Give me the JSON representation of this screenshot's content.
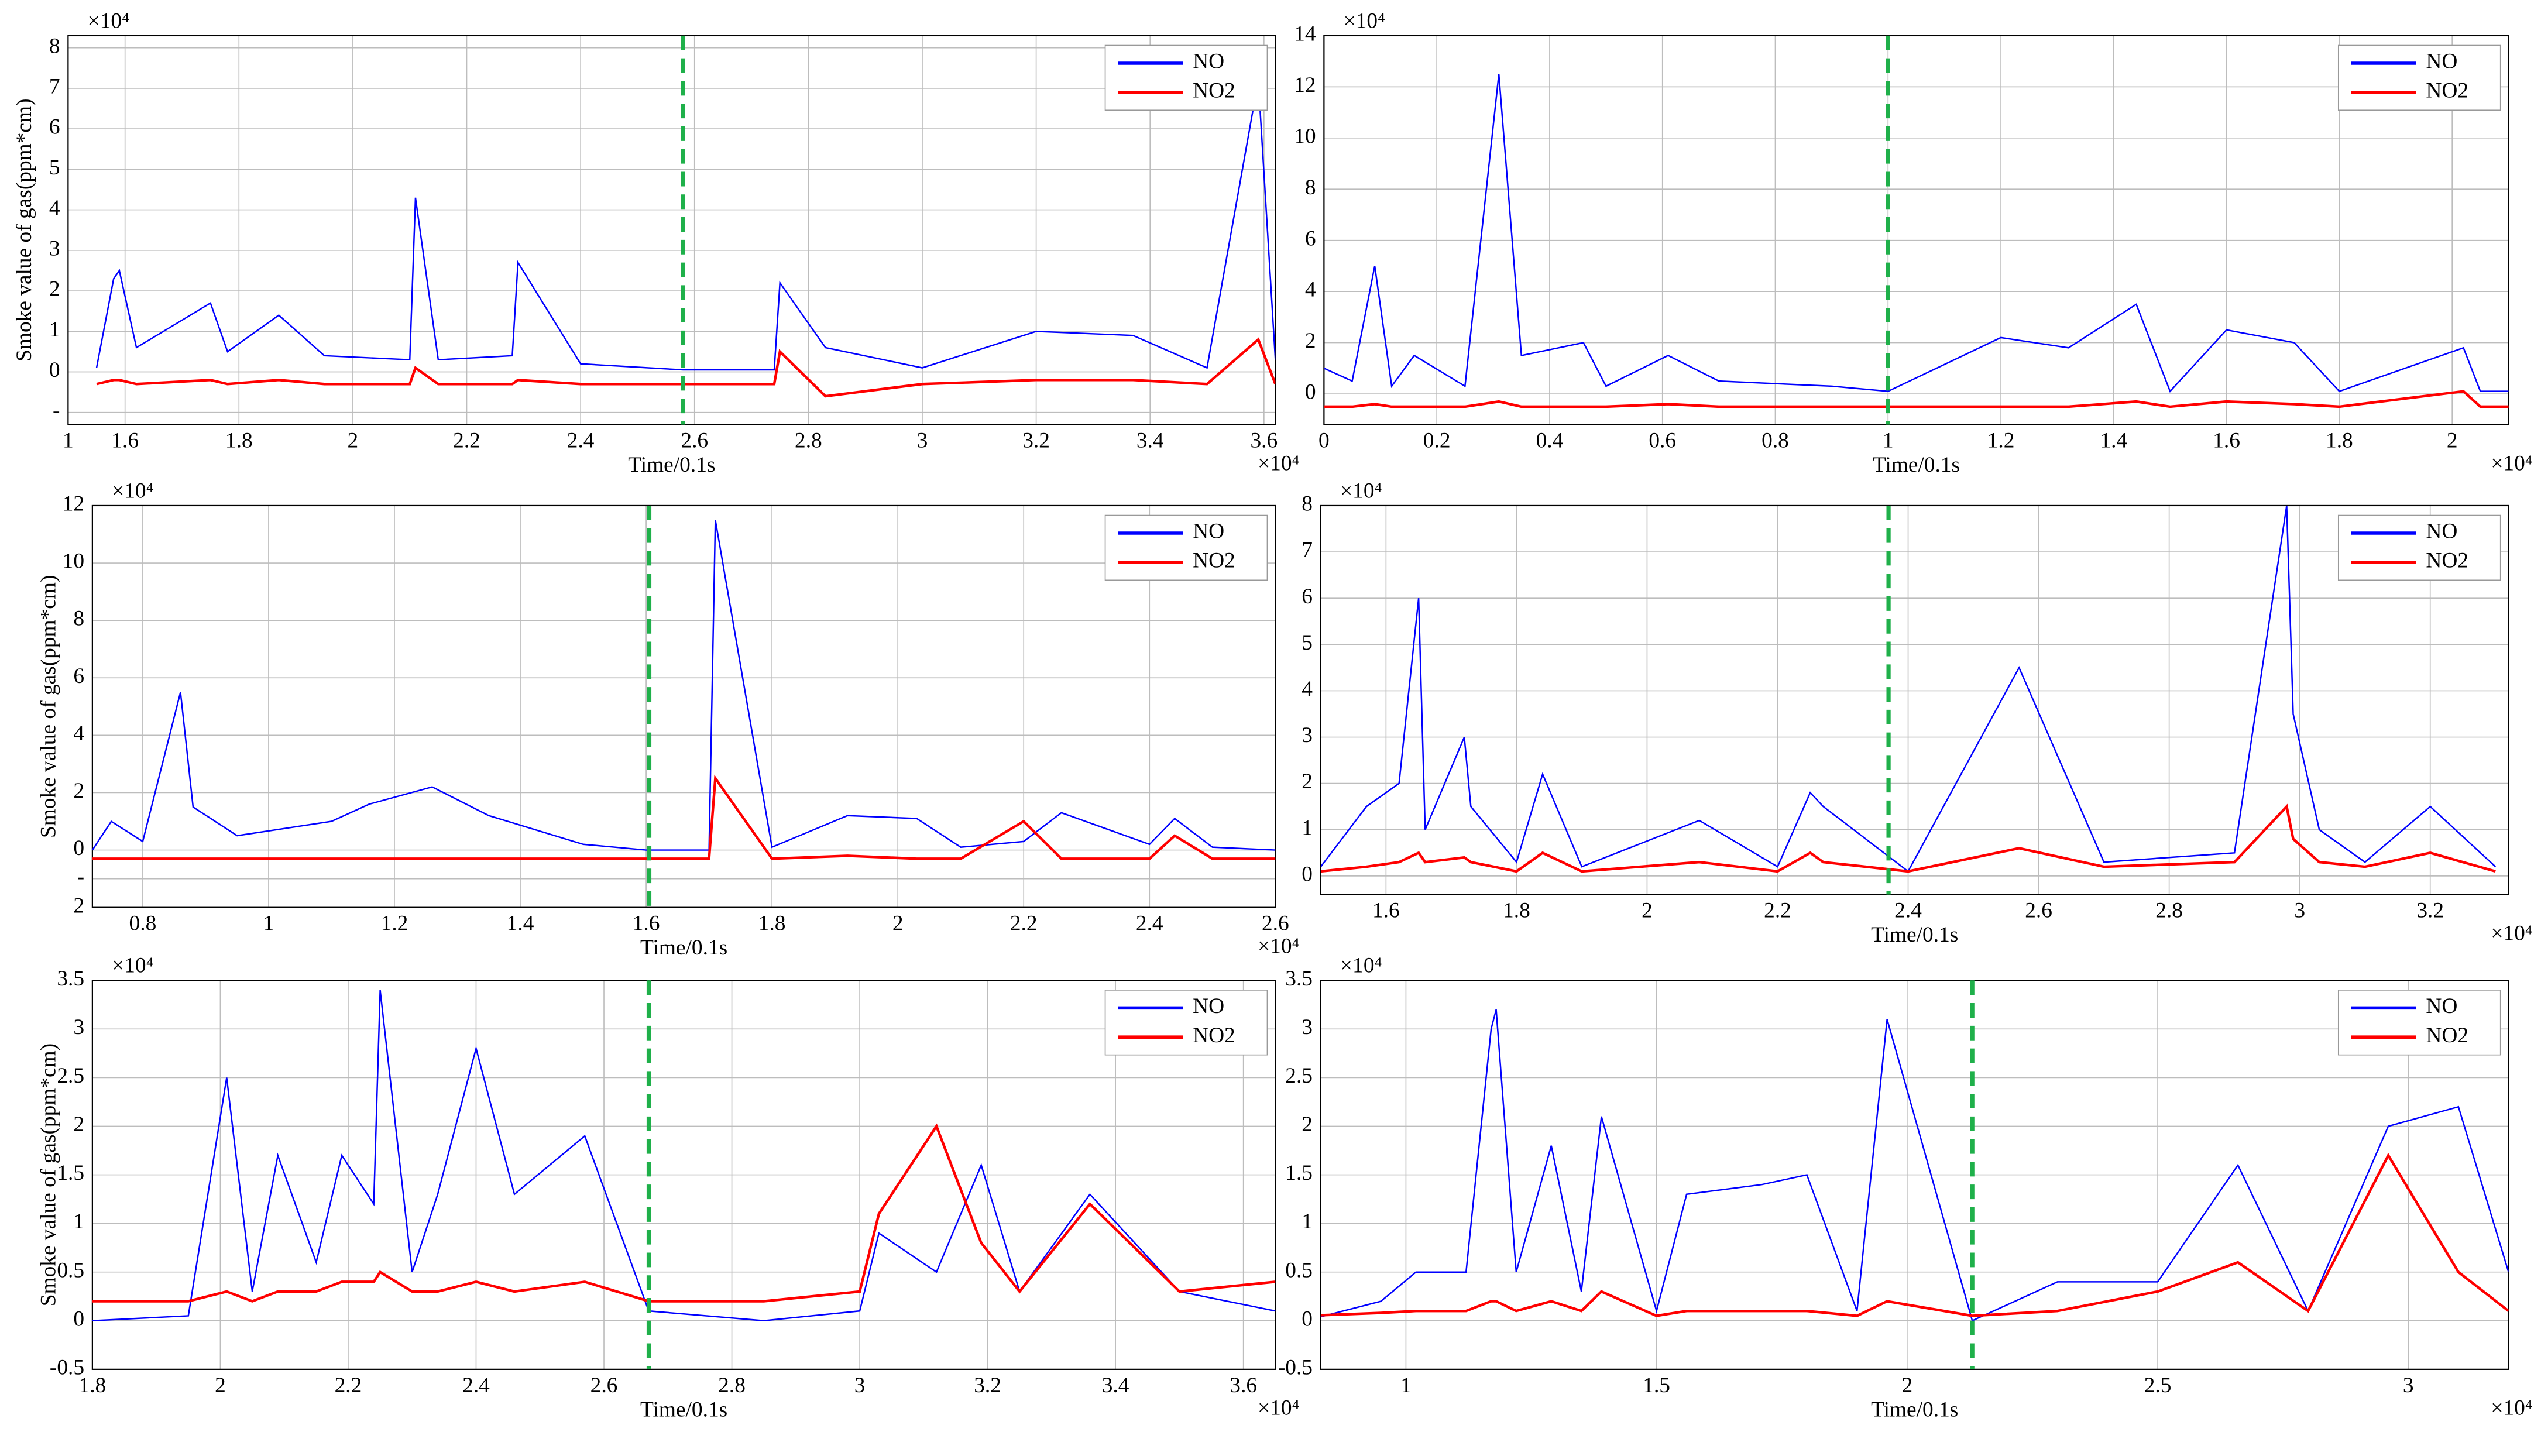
{
  "chart_data": [
    {
      "type": "line",
      "legend": "upper right",
      "grid": true,
      "ylabel": "Smoke value of gas(ppm*cm)",
      "xlabel": "Time/0.1s",
      "x_multiplier": "×10⁴",
      "y_multiplier": "×10⁴",
      "xlim": [
        1.5,
        3.62
      ],
      "ylim": [
        -1.3,
        8.3
      ],
      "xticks": [
        {
          "value": 1.5,
          "label": "1"
        },
        1.6,
        1.8,
        2,
        2.2,
        2.4,
        2.6,
        2.8,
        3,
        3.2,
        3.4,
        3.6
      ],
      "yticks": [
        {
          "value": -1,
          "label": "-"
        },
        0,
        1,
        2,
        3,
        4,
        5,
        6,
        7,
        8
      ],
      "vline": {
        "x": 2.58,
        "color": "#1fb04a"
      },
      "x": [
        1.55,
        1.58,
        1.59,
        1.62,
        1.75,
        1.78,
        1.87,
        1.95,
        2.1,
        2.11,
        2.15,
        2.28,
        2.29,
        2.4,
        2.58,
        2.74,
        2.75,
        2.83,
        3.0,
        3.2,
        3.37,
        3.5,
        3.59,
        3.62
      ],
      "series": [
        {
          "name": "NO",
          "color": "#0000ff",
          "values": [
            0.1,
            2.3,
            2.5,
            0.6,
            1.7,
            0.5,
            1.4,
            0.4,
            0.3,
            4.3,
            0.3,
            0.4,
            2.7,
            0.2,
            0.05,
            0.05,
            2.2,
            0.6,
            0.1,
            1.0,
            0.9,
            0.1,
            7.2,
            0.3
          ]
        },
        {
          "name": "NO2",
          "color": "#ff0000",
          "values": [
            -0.3,
            -0.2,
            -0.2,
            -0.3,
            -0.2,
            -0.3,
            -0.2,
            -0.3,
            -0.3,
            0.1,
            -0.3,
            -0.3,
            -0.2,
            -0.3,
            -0.3,
            -0.3,
            0.5,
            -0.6,
            -0.3,
            -0.2,
            -0.2,
            -0.3,
            0.8,
            -0.3
          ]
        }
      ]
    },
    {
      "type": "line",
      "legend": "upper right",
      "grid": true,
      "xlabel": "Time/0.1s",
      "x_multiplier": "×10⁴",
      "y_multiplier": "×10⁴",
      "xlim": [
        0,
        2.1
      ],
      "ylim": [
        -1.2,
        14
      ],
      "xticks": [
        0,
        0.2,
        0.4,
        0.6,
        0.8,
        1,
        1.2,
        1.4,
        1.6,
        1.8,
        2
      ],
      "yticks": [
        0,
        2,
        4,
        6,
        8,
        10,
        12,
        14
      ],
      "vline": {
        "x": 1.0,
        "color": "#1fb04a"
      },
      "x": [
        0,
        0.05,
        0.09,
        0.12,
        0.16,
        0.25,
        0.31,
        0.35,
        0.46,
        0.5,
        0.61,
        0.7,
        0.9,
        1.0,
        1.2,
        1.32,
        1.44,
        1.5,
        1.6,
        1.72,
        1.8,
        2.02,
        2.05,
        2.1
      ],
      "series": [
        {
          "name": "NO",
          "color": "#0000ff",
          "values": [
            1,
            0.5,
            5,
            0.3,
            1.5,
            0.3,
            12.5,
            1.5,
            2,
            0.3,
            1.5,
            0.5,
            0.3,
            0.1,
            2.2,
            1.8,
            3.5,
            0.1,
            2.5,
            2,
            0.1,
            1.8,
            0.1,
            0.1
          ]
        },
        {
          "name": "NO2",
          "color": "#ff0000",
          "values": [
            -0.5,
            -0.5,
            -0.4,
            -0.5,
            -0.5,
            -0.5,
            -0.3,
            -0.5,
            -0.5,
            -0.5,
            -0.4,
            -0.5,
            -0.5,
            -0.5,
            -0.5,
            -0.5,
            -0.3,
            -0.5,
            -0.3,
            -0.4,
            -0.5,
            0.1,
            -0.5,
            -0.5
          ]
        }
      ]
    },
    {
      "type": "line",
      "legend": "upper right",
      "grid": true,
      "ylabel": "Smoke value of gas(ppm*cm)",
      "xlabel": "Time/0.1s",
      "x_multiplier": "×10⁴",
      "y_multiplier": "×10⁴",
      "xlim": [
        0.72,
        2.6
      ],
      "ylim": [
        -2,
        12
      ],
      "xticks": [
        0.8,
        1,
        1.2,
        1.4,
        1.6,
        1.8,
        2,
        2.2,
        2.4,
        2.6
      ],
      "yticks": [
        {
          "value": -2,
          "label": "2"
        },
        {
          "value": -1,
          "label": "-"
        },
        0,
        2,
        4,
        6,
        8,
        10,
        12
      ],
      "vline": {
        "x": 1.605,
        "color": "#1fb04a"
      },
      "x": [
        0.72,
        0.75,
        0.8,
        0.86,
        0.88,
        0.95,
        1.1,
        1.16,
        1.26,
        1.35,
        1.5,
        1.6,
        1.7,
        1.71,
        1.8,
        1.92,
        2.03,
        2.1,
        2.2,
        2.26,
        2.4,
        2.44,
        2.5,
        2.6
      ],
      "series": [
        {
          "name": "NO",
          "color": "#0000ff",
          "values": [
            0,
            1,
            0.3,
            5.5,
            1.5,
            0.5,
            1,
            1.6,
            2.2,
            1.2,
            0.2,
            0,
            0,
            11.5,
            0.1,
            1.2,
            1.1,
            0.1,
            0.3,
            1.3,
            0.2,
            1.1,
            0.1,
            0
          ]
        },
        {
          "name": "NO2",
          "color": "#ff0000",
          "values": [
            -0.3,
            -0.3,
            -0.3,
            -0.3,
            -0.3,
            -0.3,
            -0.3,
            -0.3,
            -0.3,
            -0.3,
            -0.3,
            -0.3,
            -0.3,
            2.5,
            -0.3,
            -0.2,
            -0.3,
            -0.3,
            1,
            -0.3,
            -0.3,
            0.5,
            -0.3,
            -0.3
          ]
        }
      ]
    },
    {
      "type": "line",
      "legend": "upper right",
      "grid": true,
      "xlabel": "Time/0.1s",
      "x_multiplier": "×10⁴",
      "y_multiplier": "×10⁴",
      "xlim": [
        1.5,
        3.32
      ],
      "ylim": [
        -0.4,
        8
      ],
      "xticks": [
        1.6,
        1.8,
        2,
        2.2,
        2.4,
        2.6,
        2.8,
        3,
        3.2
      ],
      "yticks": [
        0,
        1,
        2,
        3,
        4,
        5,
        6,
        7,
        8
      ],
      "vline": {
        "x": 2.37,
        "color": "#1fb04a"
      },
      "x": [
        1.5,
        1.57,
        1.62,
        1.65,
        1.66,
        1.72,
        1.73,
        1.8,
        1.84,
        1.9,
        2.08,
        2.2,
        2.25,
        2.27,
        2.4,
        2.57,
        2.7,
        2.9,
        2.98,
        2.99,
        3.03,
        3.1,
        3.2,
        3.3
      ],
      "series": [
        {
          "name": "NO",
          "color": "#0000ff",
          "values": [
            0.2,
            1.5,
            2,
            6,
            1,
            3,
            1.5,
            0.3,
            2.2,
            0.2,
            1.2,
            0.2,
            1.8,
            1.5,
            0.1,
            4.5,
            0.3,
            0.5,
            8,
            3.5,
            1,
            0.3,
            1.5,
            0.2
          ]
        },
        {
          "name": "NO2",
          "color": "#ff0000",
          "values": [
            0.1,
            0.2,
            0.3,
            0.5,
            0.3,
            0.4,
            0.3,
            0.1,
            0.5,
            0.1,
            0.3,
            0.1,
            0.5,
            0.3,
            0.1,
            0.6,
            0.2,
            0.3,
            1.5,
            0.8,
            0.3,
            0.2,
            0.5,
            0.1
          ]
        }
      ]
    },
    {
      "type": "line",
      "legend": "upper right",
      "grid": true,
      "ylabel": "Smoke value of gas(ppm*cm)",
      "xlabel": "Time/0.1s",
      "x_multiplier": "×10⁴",
      "y_multiplier": "×10⁴",
      "xlim": [
        1.8,
        3.65
      ],
      "ylim": [
        -0.5,
        3.5
      ],
      "xticks": [
        1.8,
        2,
        2.2,
        2.4,
        2.6,
        2.8,
        3,
        3.2,
        3.4,
        3.6
      ],
      "yticks": [
        -0.5,
        0,
        0.5,
        1,
        1.5,
        2,
        2.5,
        3,
        3.5
      ],
      "vline": {
        "x": 2.67,
        "color": "#1fb04a"
      },
      "x": [
        1.8,
        1.95,
        2.01,
        2.05,
        2.09,
        2.15,
        2.19,
        2.24,
        2.25,
        2.3,
        2.34,
        2.4,
        2.46,
        2.57,
        2.67,
        2.85,
        3.0,
        3.03,
        3.12,
        3.19,
        3.25,
        3.36,
        3.5,
        3.65
      ],
      "series": [
        {
          "name": "NO",
          "color": "#0000ff",
          "values": [
            0,
            0.05,
            2.5,
            0.3,
            1.7,
            0.6,
            1.7,
            1.2,
            3.4,
            0.5,
            1.3,
            2.8,
            1.3,
            1.9,
            0.1,
            0,
            0.1,
            0.9,
            0.5,
            1.6,
            0.3,
            1.3,
            0.3,
            0.1
          ]
        },
        {
          "name": "NO2",
          "color": "#ff0000",
          "values": [
            0.2,
            0.2,
            0.3,
            0.2,
            0.3,
            0.3,
            0.4,
            0.4,
            0.5,
            0.3,
            0.3,
            0.4,
            0.3,
            0.4,
            0.2,
            0.2,
            0.3,
            1.1,
            2,
            0.8,
            0.3,
            1.2,
            0.3,
            0.4
          ]
        }
      ]
    },
    {
      "type": "line",
      "legend": "upper right",
      "grid": true,
      "xlabel": "Time/0.1s",
      "x_multiplier": "×10⁴",
      "y_multiplier": "×10⁴",
      "xlim": [
        0.83,
        3.2
      ],
      "ylim": [
        -0.5,
        3.5
      ],
      "xticks": [
        1,
        1.5,
        2,
        2.5,
        3
      ],
      "yticks": [
        -0.5,
        0,
        0.5,
        1,
        1.5,
        2,
        2.5,
        3,
        3.5
      ],
      "vline": {
        "x": 2.13,
        "color": "#1fb04a"
      },
      "x": [
        0.8,
        0.95,
        1.02,
        1.12,
        1.17,
        1.18,
        1.22,
        1.29,
        1.35,
        1.39,
        1.5,
        1.56,
        1.71,
        1.8,
        1.9,
        1.96,
        2.13,
        2.3,
        2.5,
        2.66,
        2.8,
        2.96,
        3.1,
        3.2
      ],
      "series": [
        {
          "name": "NO",
          "color": "#0000ff",
          "values": [
            0,
            0.2,
            0.5,
            0.5,
            3,
            3.2,
            0.5,
            1.8,
            0.3,
            2.1,
            0.1,
            1.3,
            1.4,
            1.5,
            0.1,
            3.1,
            0,
            0.4,
            0.4,
            1.6,
            0.1,
            2,
            2.2,
            0.5
          ]
        },
        {
          "name": "NO2",
          "color": "#ff0000",
          "values": [
            0.05,
            0.08,
            0.1,
            0.1,
            0.2,
            0.2,
            0.1,
            0.2,
            0.1,
            0.3,
            0.05,
            0.1,
            0.1,
            0.1,
            0.05,
            0.2,
            0.05,
            0.1,
            0.3,
            0.6,
            0.1,
            1.7,
            0.5,
            0.1
          ]
        }
      ]
    }
  ]
}
